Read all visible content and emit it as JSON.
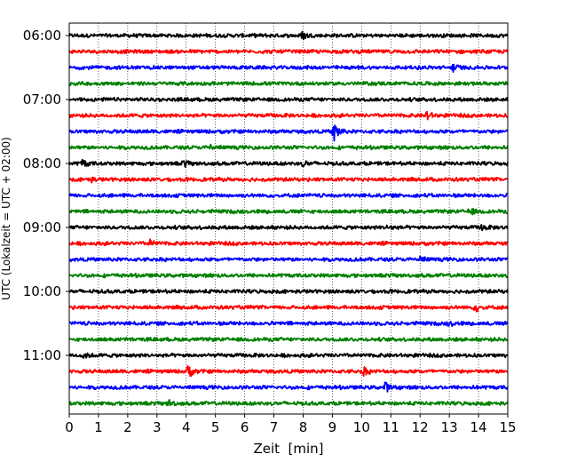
{
  "chart_data": {
    "type": "line",
    "title": "",
    "xlabel": "Zeit  [min]",
    "ylabel": "UTC (Lokalzeit = UTC + 02:00)",
    "xlim": [
      0,
      15
    ],
    "x_ticks": [
      0,
      1,
      2,
      3,
      4,
      5,
      6,
      7,
      8,
      9,
      10,
      11,
      12,
      13,
      14,
      15
    ],
    "x_tick_labels": [
      "0",
      "1",
      "2",
      "3",
      "4",
      "5",
      "6",
      "7",
      "8",
      "9",
      "10",
      "11",
      "12",
      "13",
      "14",
      "15"
    ],
    "y_tick_labels": [
      "06:00",
      "07:00",
      "08:00",
      "09:00",
      "10:00",
      "11:00"
    ],
    "y_tick_trace_index": [
      0,
      4,
      8,
      12,
      16,
      20
    ],
    "grid": "vertical dotted lines at each minute",
    "color_cycle": [
      "#000000",
      "#ff0000",
      "#0000ff",
      "#008000"
    ],
    "series": [
      {
        "start": "06:00",
        "color": "#000000",
        "events": [
          {
            "x": 7.95,
            "amp": 0.55
          }
        ]
      },
      {
        "start": "06:15",
        "color": "#ff0000",
        "events": []
      },
      {
        "start": "06:30",
        "color": "#0000ff",
        "events": [
          {
            "x": 13.1,
            "amp": 0.55
          }
        ]
      },
      {
        "start": "06:45",
        "color": "#008000",
        "events": []
      },
      {
        "start": "07:00",
        "color": "#000000",
        "events": []
      },
      {
        "start": "07:15",
        "color": "#ff0000",
        "events": [
          {
            "x": 12.2,
            "amp": 0.7
          }
        ]
      },
      {
        "start": "07:30",
        "color": "#0000ff",
        "events": [
          {
            "x": 9.05,
            "amp": 1.6
          }
        ]
      },
      {
        "start": "07:45",
        "color": "#008000",
        "events": [
          {
            "x": 4.8,
            "amp": 0.4
          }
        ]
      },
      {
        "start": "08:00",
        "color": "#000000",
        "events": [
          {
            "x": 0.45,
            "amp": 0.5
          },
          {
            "x": 3.9,
            "amp": 0.4
          },
          {
            "x": 8.0,
            "amp": 0.4
          }
        ]
      },
      {
        "start": "08:15",
        "color": "#ff0000",
        "events": [
          {
            "x": 0.7,
            "amp": 0.35
          }
        ]
      },
      {
        "start": "08:30",
        "color": "#0000ff",
        "events": []
      },
      {
        "start": "08:45",
        "color": "#008000",
        "events": [
          {
            "x": 13.7,
            "amp": 0.45
          }
        ]
      },
      {
        "start": "09:00",
        "color": "#000000",
        "events": [
          {
            "x": 10.9,
            "amp": 0.35
          },
          {
            "x": 14.1,
            "amp": 0.35
          }
        ]
      },
      {
        "start": "09:15",
        "color": "#ff0000",
        "events": [
          {
            "x": 2.75,
            "amp": 0.45
          }
        ]
      },
      {
        "start": "09:30",
        "color": "#0000ff",
        "events": [
          {
            "x": 12.0,
            "amp": 0.35
          }
        ]
      },
      {
        "start": "09:45",
        "color": "#008000",
        "events": []
      },
      {
        "start": "10:00",
        "color": "#000000",
        "events": []
      },
      {
        "start": "10:15",
        "color": "#ff0000",
        "events": [
          {
            "x": 13.9,
            "amp": 0.5
          }
        ]
      },
      {
        "start": "10:30",
        "color": "#0000ff",
        "events": [
          {
            "x": 13.0,
            "amp": 0.35
          }
        ]
      },
      {
        "start": "10:45",
        "color": "#008000",
        "events": []
      },
      {
        "start": "11:00",
        "color": "#000000",
        "events": [
          {
            "x": 0.45,
            "amp": 0.45
          }
        ]
      },
      {
        "start": "11:15",
        "color": "#ff0000",
        "events": [
          {
            "x": 4.05,
            "amp": 0.95
          },
          {
            "x": 10.05,
            "amp": 0.6
          }
        ]
      },
      {
        "start": "11:30",
        "color": "#0000ff",
        "events": [
          {
            "x": 10.8,
            "amp": 0.6
          }
        ]
      },
      {
        "start": "11:45",
        "color": "#008000",
        "events": [
          {
            "x": 3.4,
            "amp": 0.4
          }
        ]
      }
    ]
  }
}
